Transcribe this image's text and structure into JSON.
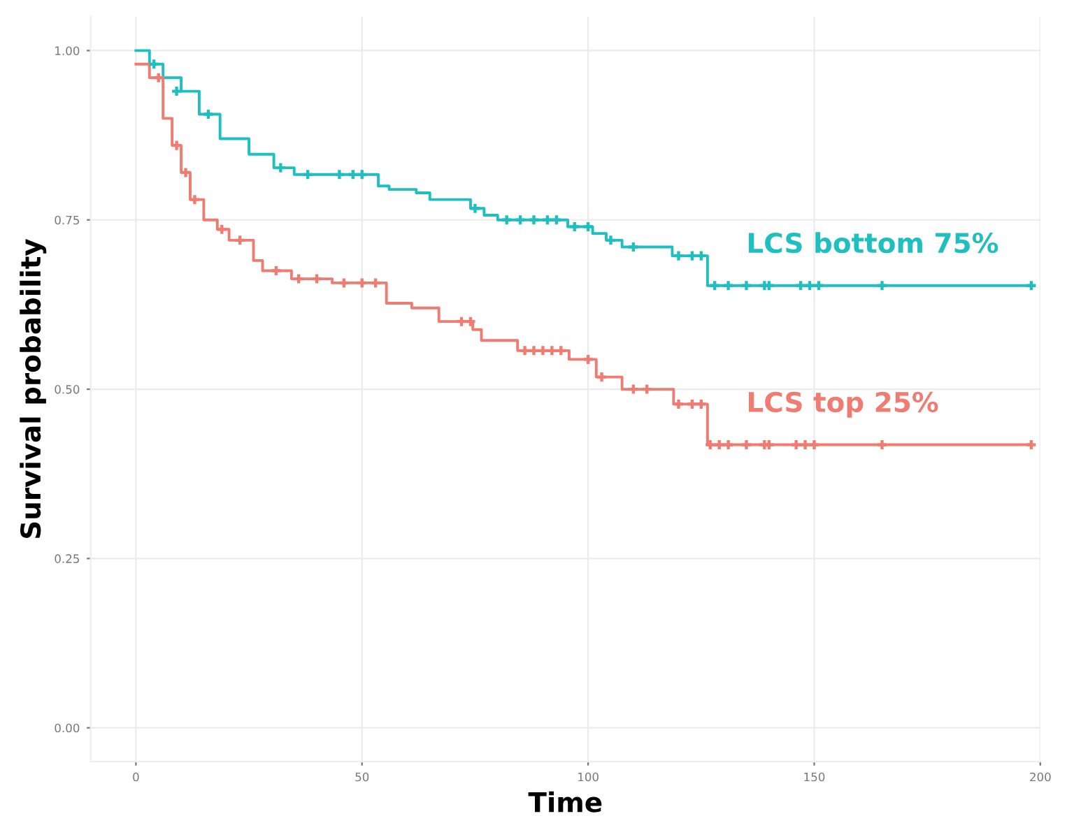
{
  "chart_data": {
    "type": "step",
    "xlabel": "Time",
    "ylabel": "Survival probability",
    "xlim": [
      -10,
      200
    ],
    "ylim": [
      -0.05,
      1.05
    ],
    "xticks": [
      0,
      50,
      100,
      150,
      200
    ],
    "yticks": [
      {
        "value": 0,
        "label": "0.00"
      },
      {
        "value": 0.25,
        "label": "0.25"
      },
      {
        "value": 0.5,
        "label": "0.50"
      },
      {
        "value": 0.75,
        "label": "0.75"
      },
      {
        "value": 1,
        "label": "1.00"
      }
    ],
    "grid": true,
    "legend": false,
    "line_style": "solid",
    "series": [
      {
        "name": "LCS bottom 75%",
        "color": "#1fbfc0",
        "x": [
          0,
          3,
          6,
          10,
          14,
          18.6,
          25,
          30.5,
          35,
          53.6,
          56,
          62,
          65,
          74,
          77,
          80,
          95.5,
          101,
          104,
          107.5,
          118.6,
          126.4,
          198
        ],
        "values": [
          1.0,
          0.98,
          0.96,
          0.94,
          0.906,
          0.87,
          0.847,
          0.827,
          0.817,
          0.8,
          0.795,
          0.79,
          0.78,
          0.767,
          0.757,
          0.75,
          0.74,
          0.73,
          0.72,
          0.71,
          0.697,
          0.653,
          0.653
        ]
      },
      {
        "name": "LCS top 25%",
        "color": "#f07b70",
        "x": [
          0,
          3,
          6,
          8,
          10,
          12,
          15,
          18,
          20.6,
          26,
          28,
          34.4,
          43.4,
          55.4,
          61,
          67,
          74.5,
          76.4,
          84.4,
          95.8,
          101.8,
          107.5,
          118.9,
          126.4,
          198
        ],
        "values": [
          0.98,
          0.96,
          0.9,
          0.86,
          0.82,
          0.78,
          0.75,
          0.736,
          0.72,
          0.69,
          0.675,
          0.663,
          0.657,
          0.627,
          0.62,
          0.6,
          0.588,
          0.572,
          0.557,
          0.544,
          0.518,
          0.5,
          0.478,
          0.418,
          0.418
        ]
      },
      {
        "type": "scatter",
        "marker": "cross",
        "color": "#1fbfc0",
        "x": [
          4,
          9,
          16,
          32,
          38,
          45,
          48,
          50,
          75,
          82,
          85,
          88,
          91,
          93,
          97,
          100,
          105,
          110,
          120,
          123,
          125,
          128,
          131,
          135,
          139,
          140,
          147,
          149,
          151,
          165,
          198
        ],
        "values": [
          0.98,
          0.94,
          0.906,
          0.827,
          0.817,
          0.817,
          0.817,
          0.817,
          0.767,
          0.75,
          0.75,
          0.75,
          0.75,
          0.75,
          0.74,
          0.74,
          0.72,
          0.71,
          0.697,
          0.697,
          0.697,
          0.653,
          0.653,
          0.653,
          0.653,
          0.653,
          0.653,
          0.653,
          0.653,
          0.653,
          0.653
        ]
      },
      {
        "type": "scatter",
        "marker": "cross",
        "color": "#f07b70",
        "x": [
          5,
          9,
          11,
          13,
          19,
          23,
          31,
          36,
          40,
          46,
          50,
          53,
          72,
          74,
          86,
          88,
          90,
          92,
          94,
          100,
          103,
          110,
          113,
          120,
          123,
          125,
          127,
          129,
          131,
          135,
          139,
          140,
          146,
          148,
          150,
          165,
          198
        ],
        "values": [
          0.96,
          0.86,
          0.82,
          0.78,
          0.736,
          0.72,
          0.675,
          0.663,
          0.663,
          0.657,
          0.657,
          0.657,
          0.6,
          0.6,
          0.557,
          0.557,
          0.557,
          0.557,
          0.557,
          0.544,
          0.518,
          0.5,
          0.5,
          0.478,
          0.478,
          0.478,
          0.418,
          0.418,
          0.418,
          0.418,
          0.418,
          0.418,
          0.418,
          0.418,
          0.418,
          0.418,
          0.418
        ]
      }
    ]
  }
}
